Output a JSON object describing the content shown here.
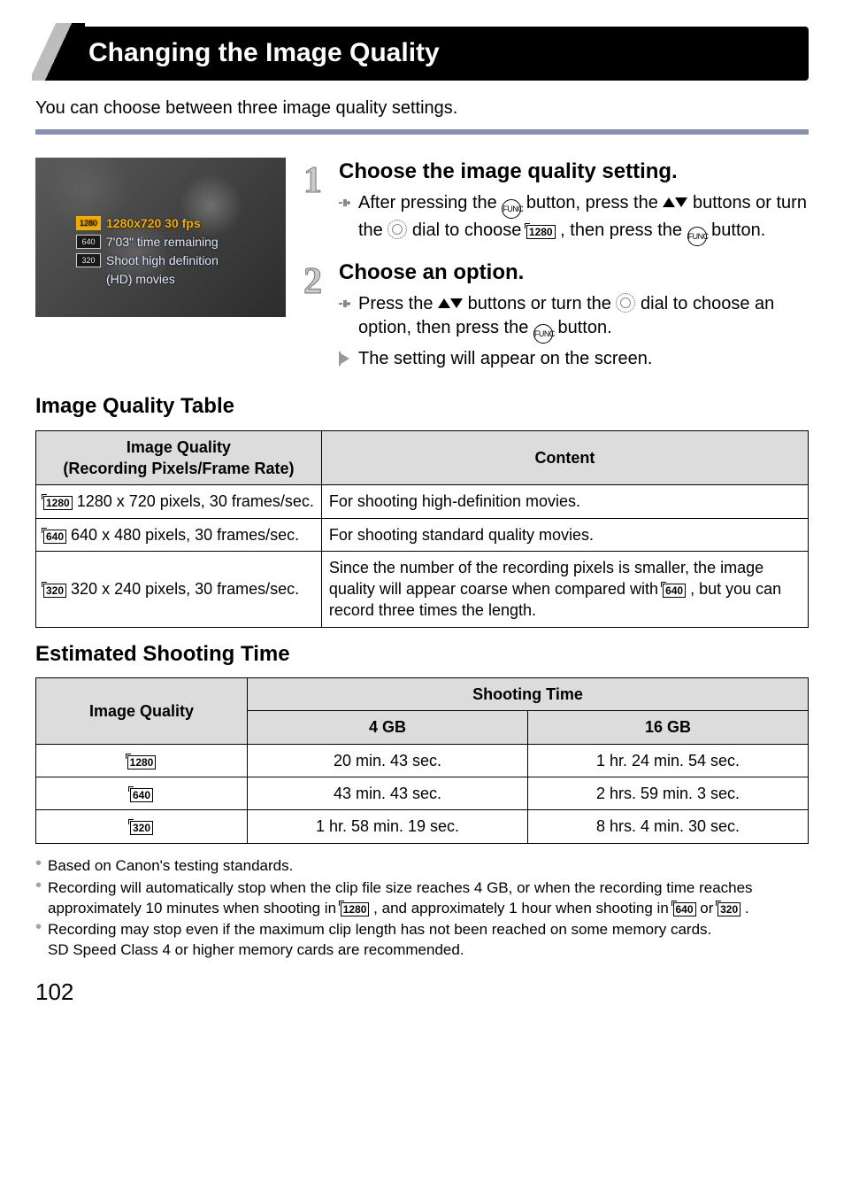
{
  "page": {
    "number": "102"
  },
  "title": "Changing the Image Quality",
  "intro": "You can choose between three image quality settings.",
  "screenshot": {
    "line1_label": "1280",
    "line1_text": "1280x720 30 fps",
    "line2_label": "640",
    "line2_text": "7'03\" time remaining",
    "line3_label": "320",
    "line3_text": "Shoot high definition",
    "line4_text": "(HD) movies"
  },
  "steps": [
    {
      "num": "1",
      "title": "Choose the image quality setting.",
      "body": [
        {
          "marker": "sound",
          "html": "After pressing the <span class='btn-circ' data-name='func-set-icon' data-interactable='false'>FUNC<br></span> button, press the <span class='tri-up' data-name='up-icon' data-interactable='false'></span><span class='tri-dn' data-name='down-icon' data-interactable='false'></span> buttons or turn the <span class='dial-circ' data-name='dial-icon' data-interactable='false'></span> dial to choose <span class='res-icon' data-name='res-1280-icon' data-interactable='false'>1280</span> , then press the <span class='btn-circ' data-name='func-set-icon' data-interactable='false'>FUNC</span> button."
        }
      ]
    },
    {
      "num": "2",
      "title": "Choose an option.",
      "body": [
        {
          "marker": "sound",
          "html": "Press the <span class='tri-up' data-name='up-icon' data-interactable='false'></span><span class='tri-dn' data-name='down-icon' data-interactable='false'></span> buttons or turn the <span class='dial-circ' data-name='dial-icon' data-interactable='false'></span> dial to choose an option, then press the <span class='btn-circ' data-name='func-set-icon' data-interactable='false'>FUNC</span> button."
        },
        {
          "marker": "play",
          "html": "The setting will appear on the screen."
        }
      ]
    }
  ],
  "quality_section_title": "Image Quality Table",
  "quality_table": {
    "headers": [
      "Image Quality\n(Recording Pixels/Frame Rate)",
      "Content"
    ],
    "rows": [
      {
        "icon": "1280",
        "spec": "1280 x 720 pixels, 30 frames/sec.",
        "content": "For shooting high-definition movies."
      },
      {
        "icon": "640",
        "spec": "640 x 480 pixels, 30 frames/sec.",
        "content": "For shooting standard quality movies."
      },
      {
        "icon": "320",
        "spec": "320 x 240 pixels, 30 frames/sec.",
        "content_html": "Since the number of the recording pixels is smaller, the image quality will appear coarse when compared with <span class='res-icon' data-name='res-640-icon' data-interactable='false'>640</span> , but you can record three times the length."
      }
    ]
  },
  "shoot_section_title": "Estimated Shooting Time",
  "shoot_table": {
    "header_main": "Image Quality",
    "header_span": "Shooting Time",
    "sub_headers": [
      "4 GB",
      "16 GB"
    ],
    "rows": [
      {
        "icon": "1280",
        "c1": "20 min. 43 sec.",
        "c2": "1 hr. 24 min. 54 sec."
      },
      {
        "icon": "640",
        "c1": "43 min. 43 sec.",
        "c2": "2 hrs. 59 min. 3 sec."
      },
      {
        "icon": "320",
        "c1": "1 hr. 58 min. 19 sec.",
        "c2": "8 hrs. 4 min. 30 sec."
      }
    ]
  },
  "notes": [
    "Based on Canon's testing standards.",
    {
      "html": "Recording will automatically stop when the clip file size reaches 4 GB, or when the recording time reaches approximately 10 minutes when shooting in <span class='res-icon' data-name='res-1280-icon' data-interactable='false'>1280</span> , and approximately 1 hour when shooting in <span class='res-icon' data-name='res-640-icon' data-interactable='false'>640</span> or <span class='res-icon' data-name='res-320-icon' data-interactable='false'>320</span> ."
    },
    "Recording may stop even if the maximum clip length has not been reached on some memory cards.\nSD Speed Class 4 or higher memory cards are recommended."
  ],
  "colors": {
    "accent": "#8a8fb7",
    "header_bg": "#dcdcdc",
    "step_num": "#c8c8c8",
    "osd_highlight": "#f2ae00"
  }
}
